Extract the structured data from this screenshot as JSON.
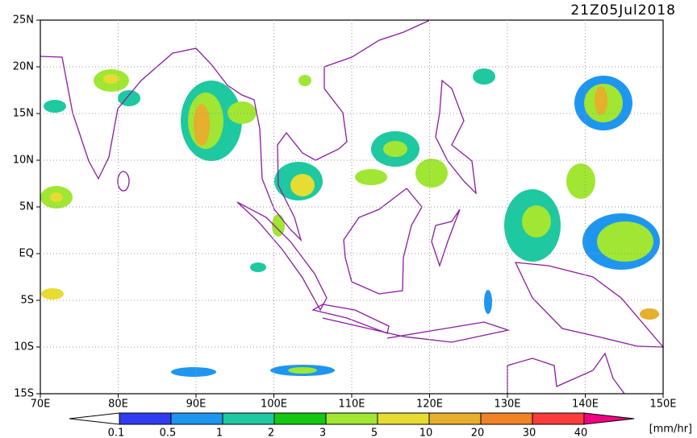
{
  "title": "21Z05Jul2018",
  "map": {
    "x_labels": [
      "70E",
      "80E",
      "90E",
      "100E",
      "110E",
      "120E",
      "130E",
      "140E",
      "150E"
    ],
    "y_labels": [
      "25N",
      "20N",
      "15N",
      "10N",
      "5N",
      "EQ",
      "5S",
      "10S",
      "15S"
    ]
  },
  "colorbar": {
    "labels": [
      "0.1",
      "0.5",
      "1",
      "2",
      "3",
      "5",
      "10",
      "20",
      "30",
      "40"
    ],
    "colors": [
      "#ffffff",
      "#2f3cf0",
      "#1e96f0",
      "#1ec8a0",
      "#14c814",
      "#a0e632",
      "#e6dc32",
      "#e6af2d",
      "#f08228",
      "#fa3c3c",
      "#f00082"
    ],
    "unit": "[mm/hr]"
  }
}
